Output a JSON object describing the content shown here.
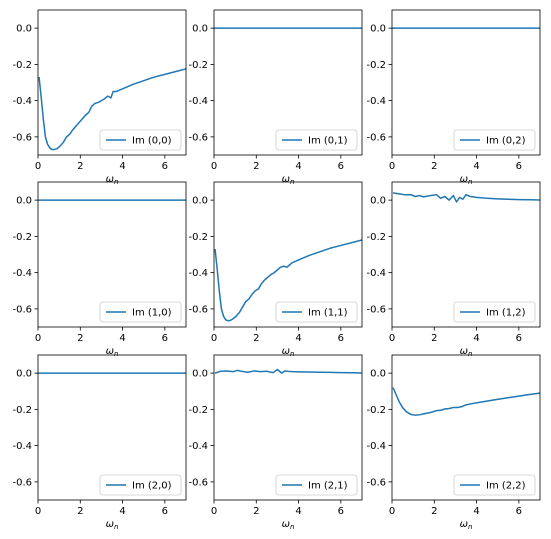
{
  "chart_data": [
    {
      "type": "line",
      "legend": "Im (0,0)",
      "legend_position": "lower-right",
      "xlabel": "ω",
      "xlabel_sub": "n",
      "xlim": [
        0,
        7
      ],
      "ylim": [
        -0.7,
        0.1
      ],
      "xticks": [
        "0",
        "2",
        "4",
        "6"
      ],
      "yticks": [
        "0.0",
        "-0.2",
        "-0.4",
        "-0.6"
      ],
      "color": "#1f77b4",
      "x": [
        0.05,
        0.15,
        0.25,
        0.35,
        0.45,
        0.55,
        0.65,
        0.75,
        0.9,
        1.05,
        1.2,
        1.35,
        1.5,
        1.65,
        1.8,
        1.95,
        2.1,
        2.25,
        2.4,
        2.55,
        2.7,
        2.85,
        3.0,
        3.15,
        3.3,
        3.45,
        3.55,
        3.7,
        4.0,
        4.5,
        5.0,
        5.5,
        6.0,
        6.5,
        7.0
      ],
      "y": [
        -0.27,
        -0.38,
        -0.5,
        -0.6,
        -0.64,
        -0.66,
        -0.67,
        -0.67,
        -0.665,
        -0.65,
        -0.63,
        -0.6,
        -0.585,
        -0.56,
        -0.54,
        -0.52,
        -0.5,
        -0.48,
        -0.465,
        -0.43,
        -0.415,
        -0.41,
        -0.4,
        -0.39,
        -0.375,
        -0.385,
        -0.35,
        -0.35,
        -0.335,
        -0.31,
        -0.29,
        -0.27,
        -0.255,
        -0.24,
        -0.225
      ]
    },
    {
      "type": "line",
      "legend": "Im (0,1)",
      "legend_position": "lower-right",
      "xlabel": "ω",
      "xlabel_sub": "n",
      "xlim": [
        0,
        7
      ],
      "ylim": [
        -0.7,
        0.1
      ],
      "xticks": [
        "0",
        "2",
        "4",
        "6"
      ],
      "yticks": [
        "0.0",
        "-0.2",
        "-0.4",
        "-0.6"
      ],
      "color": "#1f77b4",
      "x": [
        0,
        7
      ],
      "y": [
        0.0,
        0.0
      ]
    },
    {
      "type": "line",
      "legend": "Im (0,2)",
      "legend_position": "lower-right",
      "xlabel": "ω",
      "xlabel_sub": "n",
      "xlim": [
        0,
        7
      ],
      "ylim": [
        -0.7,
        0.1
      ],
      "xticks": [
        "0",
        "2",
        "4",
        "6"
      ],
      "yticks": [
        "0.0",
        "-0.2",
        "-0.4",
        "-0.6"
      ],
      "color": "#1f77b4",
      "x": [
        0,
        7
      ],
      "y": [
        0.0,
        0.0
      ]
    },
    {
      "type": "line",
      "legend": "Im (1,0)",
      "legend_position": "lower-right",
      "xlabel": "ω",
      "xlabel_sub": "n",
      "xlim": [
        0,
        7
      ],
      "ylim": [
        -0.7,
        0.1
      ],
      "xticks": [
        "0",
        "2",
        "4",
        "6"
      ],
      "yticks": [
        "0.0",
        "-0.2",
        "-0.4",
        "-0.6"
      ],
      "color": "#1f77b4",
      "x": [
        0,
        7
      ],
      "y": [
        0.0,
        0.0
      ]
    },
    {
      "type": "line",
      "legend": "Im (1,1)",
      "legend_position": "lower-right",
      "xlabel": "ω",
      "xlabel_sub": "n",
      "xlim": [
        0,
        7
      ],
      "ylim": [
        -0.7,
        0.1
      ],
      "xticks": [
        "0",
        "2",
        "4",
        "6"
      ],
      "yticks": [
        "0.0",
        "-0.2",
        "-0.4",
        "-0.6"
      ],
      "color": "#1f77b4",
      "x": [
        0.05,
        0.15,
        0.25,
        0.35,
        0.45,
        0.55,
        0.65,
        0.75,
        0.9,
        1.05,
        1.2,
        1.35,
        1.5,
        1.65,
        1.8,
        1.95,
        2.1,
        2.25,
        2.4,
        2.55,
        2.7,
        2.85,
        3.0,
        3.15,
        3.3,
        3.45,
        3.55,
        3.7,
        4.0,
        4.5,
        5.0,
        5.5,
        6.0,
        6.5,
        7.0
      ],
      "y": [
        -0.27,
        -0.38,
        -0.5,
        -0.6,
        -0.64,
        -0.66,
        -0.665,
        -0.665,
        -0.655,
        -0.64,
        -0.62,
        -0.59,
        -0.56,
        -0.545,
        -0.52,
        -0.5,
        -0.49,
        -0.46,
        -0.44,
        -0.425,
        -0.41,
        -0.4,
        -0.385,
        -0.37,
        -0.365,
        -0.37,
        -0.36,
        -0.345,
        -0.33,
        -0.305,
        -0.285,
        -0.265,
        -0.25,
        -0.235,
        -0.22
      ]
    },
    {
      "type": "line",
      "legend": "Im (1,2)",
      "legend_position": "lower-right",
      "xlabel": "ω",
      "xlabel_sub": "n",
      "xlim": [
        0,
        7
      ],
      "ylim": [
        -0.7,
        0.1
      ],
      "xticks": [
        "0",
        "2",
        "4",
        "6"
      ],
      "yticks": [
        "0.0",
        "-0.2",
        "-0.4",
        "-0.6"
      ],
      "color": "#1f77b4",
      "x": [
        0.05,
        0.3,
        0.6,
        0.9,
        1.1,
        1.3,
        1.5,
        1.8,
        2.1,
        2.3,
        2.5,
        2.7,
        2.9,
        3.05,
        3.2,
        3.35,
        3.5,
        3.7,
        4.0,
        4.5,
        5.0,
        5.5,
        6.0,
        6.5,
        7.0
      ],
      "y": [
        0.04,
        0.035,
        0.03,
        0.03,
        0.02,
        0.025,
        0.018,
        0.025,
        0.03,
        0.01,
        0.02,
        0.0,
        0.025,
        -0.01,
        0.015,
        0.005,
        0.03,
        0.02,
        0.015,
        0.01,
        0.007,
        0.005,
        0.003,
        0.002,
        0.001
      ]
    },
    {
      "type": "line",
      "legend": "Im (2,0)",
      "legend_position": "lower-right",
      "xlabel": "ω",
      "xlabel_sub": "n",
      "xlim": [
        0,
        7
      ],
      "ylim": [
        -0.7,
        0.1
      ],
      "xticks": [
        "0",
        "2",
        "4",
        "6"
      ],
      "yticks": [
        "0.0",
        "-0.2",
        "-0.4",
        "-0.6"
      ],
      "color": "#1f77b4",
      "x": [
        0,
        7
      ],
      "y": [
        0.0,
        0.0
      ]
    },
    {
      "type": "line",
      "legend": "Im (2,1)",
      "legend_position": "lower-right",
      "xlabel": "ω",
      "xlabel_sub": "n",
      "xlim": [
        0,
        7
      ],
      "ylim": [
        -0.7,
        0.1
      ],
      "xticks": [
        "0",
        "2",
        "4",
        "6"
      ],
      "yticks": [
        "0.0",
        "-0.2",
        "-0.4",
        "-0.6"
      ],
      "color": "#1f77b4",
      "x": [
        0.05,
        0.3,
        0.6,
        0.9,
        1.1,
        1.3,
        1.6,
        1.9,
        2.2,
        2.5,
        2.8,
        3.0,
        3.2,
        3.35,
        3.5,
        3.7,
        4.0,
        4.5,
        5.0,
        5.5,
        6.0,
        6.5,
        7.0
      ],
      "y": [
        0.0,
        0.01,
        0.012,
        0.008,
        0.015,
        0.01,
        0.005,
        0.012,
        0.008,
        0.01,
        0.003,
        0.02,
        0.0,
        0.012,
        0.01,
        0.008,
        0.007,
        0.006,
        0.005,
        0.004,
        0.003,
        0.002,
        0.001
      ]
    },
    {
      "type": "line",
      "legend": "Im (2,2)",
      "legend_position": "lower-right",
      "xlabel": "ω",
      "xlabel_sub": "n",
      "xlim": [
        0,
        7
      ],
      "ylim": [
        -0.7,
        0.1
      ],
      "xticks": [
        "0",
        "2",
        "4",
        "6"
      ],
      "yticks": [
        "0.0",
        "-0.2",
        "-0.4",
        "-0.6"
      ],
      "color": "#1f77b4",
      "x": [
        0.05,
        0.2,
        0.35,
        0.5,
        0.7,
        0.9,
        1.1,
        1.3,
        1.5,
        1.7,
        1.9,
        2.1,
        2.3,
        2.5,
        2.7,
        2.9,
        3.1,
        3.3,
        3.5,
        3.8,
        4.2,
        4.8,
        5.4,
        6.0,
        6.5,
        7.0
      ],
      "y": [
        -0.08,
        -0.12,
        -0.16,
        -0.19,
        -0.215,
        -0.228,
        -0.232,
        -0.23,
        -0.225,
        -0.22,
        -0.215,
        -0.207,
        -0.205,
        -0.198,
        -0.195,
        -0.19,
        -0.19,
        -0.185,
        -0.175,
        -0.168,
        -0.16,
        -0.148,
        -0.137,
        -0.127,
        -0.118,
        -0.11
      ]
    }
  ]
}
